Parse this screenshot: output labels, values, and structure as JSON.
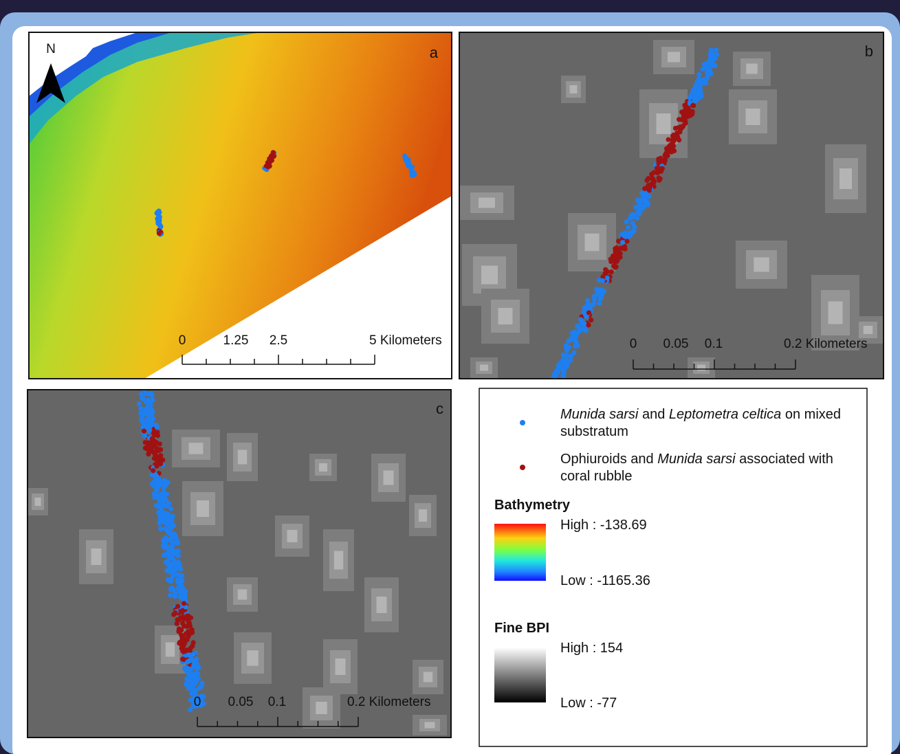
{
  "north_arrow": "N",
  "panels": [
    {
      "label": "a",
      "scalebar": [
        "0",
        "1.25",
        "2.5",
        "5 Kilometers"
      ]
    },
    {
      "label": "b",
      "scalebar": [
        "0",
        "0.05",
        "0.1",
        "0.2 Kilometers"
      ]
    },
    {
      "label": "c",
      "scalebar": [
        "0",
        "0.05",
        "0.1",
        "0.2 Kilometers"
      ]
    }
  ],
  "legend": {
    "items": [
      {
        "color": "#1e7ff0",
        "parts": [
          {
            "text": "Munida sarsi",
            "italic": true
          },
          {
            "text": " and ",
            "italic": false
          },
          {
            "text": "Leptometra celtica",
            "italic": true
          },
          {
            "text": " on mixed substratum",
            "italic": false
          }
        ]
      },
      {
        "color": "#a01212",
        "parts": [
          {
            "text": "Ophiuroids and ",
            "italic": false
          },
          {
            "text": "Munida sarsi",
            "italic": true
          },
          {
            "text": " associated with coral rubble",
            "italic": false
          }
        ]
      }
    ],
    "bathymetry": {
      "title": "Bathymetry",
      "high": "High : -138.69",
      "low": "Low : -1165.36"
    },
    "fine_bpi": {
      "title": "Fine BPI",
      "high": "High : 154",
      "low": "Low : -77"
    }
  }
}
